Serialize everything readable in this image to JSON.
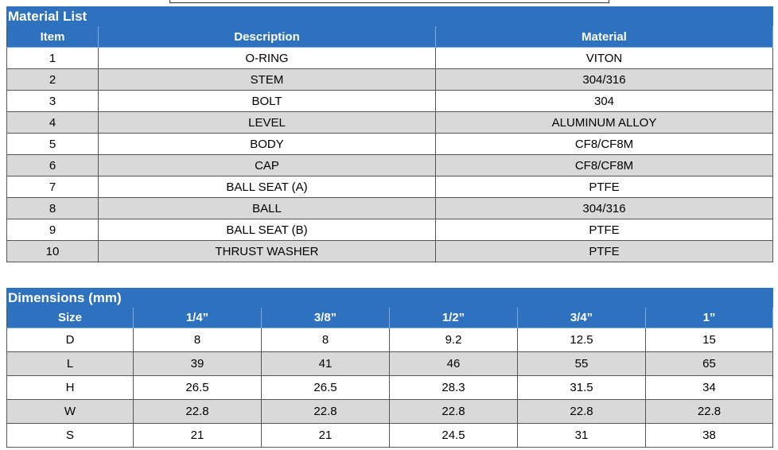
{
  "material_list": {
    "title": "Material List",
    "headers": [
      "Item",
      "Description",
      "Material"
    ],
    "rows": [
      [
        "1",
        "O-RING",
        "VITON"
      ],
      [
        "2",
        "STEM",
        "304/316"
      ],
      [
        "3",
        "BOLT",
        "304"
      ],
      [
        "4",
        "LEVEL",
        "ALUMINUM ALLOY"
      ],
      [
        "5",
        "BODY",
        "CF8/CF8M"
      ],
      [
        "6",
        "CAP",
        "CF8/CF8M"
      ],
      [
        "7",
        "BALL SEAT (A)",
        "PTFE"
      ],
      [
        "8",
        "BALL",
        "304/316"
      ],
      [
        "9",
        "BALL SEAT (B)",
        "PTFE"
      ],
      [
        "10",
        "THRUST WASHER",
        "PTFE"
      ]
    ]
  },
  "dimensions": {
    "title": "Dimensions (mm)",
    "headers": [
      "Size",
      "1/4”",
      "3/8”",
      "1/2”",
      "3/4”",
      "1”"
    ],
    "rows": [
      [
        "D",
        "8",
        "8",
        "9.2",
        "12.5",
        "15"
      ],
      [
        "L",
        "39",
        "41",
        "46",
        "55",
        "65"
      ],
      [
        "H",
        "26.5",
        "26.5",
        "28.3",
        "31.5",
        "34"
      ],
      [
        "W",
        "22.8",
        "22.8",
        "22.8",
        "22.8",
        "22.8"
      ],
      [
        "S",
        "21",
        "21",
        "24.5",
        "31",
        "38"
      ]
    ]
  }
}
